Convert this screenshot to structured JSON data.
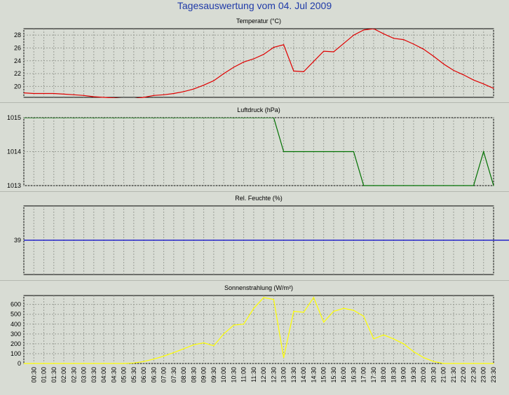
{
  "title": "Tagesauswertung vom 04. Jul 2009",
  "chart_data": [
    {
      "type": "line",
      "title": "Temperatur (°C)",
      "color": "#e00000",
      "ylim": [
        18.3,
        29
      ],
      "yticks": [
        20,
        22,
        24,
        26,
        28
      ],
      "x": [
        "00:00",
        "00:30",
        "01:00",
        "01:30",
        "02:00",
        "02:30",
        "03:00",
        "03:30",
        "04:00",
        "04:30",
        "05:00",
        "05:30",
        "06:00",
        "06:30",
        "07:00",
        "07:30",
        "08:00",
        "08:30",
        "09:00",
        "09:30",
        "10:00",
        "10:30",
        "11:00",
        "11:30",
        "12:00",
        "12:30",
        "13:00",
        "13:30",
        "14:00",
        "14:30",
        "15:00",
        "15:30",
        "16:00",
        "16:30",
        "17:00",
        "17:30",
        "18:00",
        "18:30",
        "19:00",
        "19:30",
        "20:00",
        "20:30",
        "21:00",
        "21:30",
        "22:00",
        "22:30",
        "23:00",
        "23:30"
      ],
      "values": [
        19.0,
        18.9,
        18.9,
        18.9,
        18.8,
        18.7,
        18.6,
        18.4,
        18.3,
        18.2,
        18.1,
        18.1,
        18.3,
        18.6,
        18.7,
        18.9,
        19.2,
        19.6,
        20.2,
        20.9,
        22.0,
        23.0,
        23.8,
        24.3,
        25.0,
        26.1,
        26.5,
        22.4,
        22.3,
        23.9,
        25.5,
        25.4,
        26.7,
        28.0,
        28.8,
        29.0,
        28.2,
        27.5,
        27.3,
        26.6,
        25.8,
        24.7,
        23.5,
        22.5,
        21.8,
        21.0,
        20.4,
        19.7
      ],
      "grid": true
    },
    {
      "type": "line",
      "title": "Luftdruck (hPa)",
      "color": "#007000",
      "ylim": [
        1013,
        1015
      ],
      "yticks": [
        1013,
        1014,
        1015
      ],
      "x": [
        "00:00",
        "00:30",
        "01:00",
        "01:30",
        "02:00",
        "02:30",
        "03:00",
        "03:30",
        "04:00",
        "04:30",
        "05:00",
        "05:30",
        "06:00",
        "06:30",
        "07:00",
        "07:30",
        "08:00",
        "08:30",
        "09:00",
        "09:30",
        "10:00",
        "10:30",
        "11:00",
        "11:30",
        "12:00",
        "12:30",
        "13:00",
        "13:30",
        "14:00",
        "14:30",
        "15:00",
        "15:30",
        "16:00",
        "16:30",
        "17:00",
        "17:30",
        "18:00",
        "18:30",
        "19:00",
        "19:30",
        "20:00",
        "20:30",
        "21:00",
        "21:30",
        "22:00",
        "22:30",
        "23:00",
        "23:30"
      ],
      "values": [
        1015,
        1015,
        1015,
        1015,
        1015,
        1015,
        1015,
        1015,
        1015,
        1015,
        1015,
        1015,
        1015,
        1015,
        1015,
        1015,
        1015,
        1015,
        1015,
        1015,
        1015,
        1015,
        1015,
        1015,
        1015,
        1015,
        1014,
        1014,
        1014,
        1014,
        1014,
        1014,
        1014,
        1014,
        1013,
        1013,
        1013,
        1013,
        1013,
        1013,
        1013,
        1013,
        1013,
        1013,
        1013,
        1013,
        1014,
        1013
      ],
      "grid": true
    },
    {
      "type": "line",
      "title": "Rel. Feuchte (%)",
      "color": "#0000c8",
      "ylim": [
        38,
        40
      ],
      "yticks": [
        39
      ],
      "x": [
        "00:00",
        "23:30"
      ],
      "values": [
        39,
        39
      ],
      "grid": true
    },
    {
      "type": "line",
      "title": "Sonnenstrahlung (W/m²)",
      "color": "#ffff00",
      "ylim": [
        0,
        690
      ],
      "yticks": [
        0,
        100,
        200,
        300,
        400,
        500,
        600
      ],
      "x": [
        "00:00",
        "00:30",
        "01:00",
        "01:30",
        "02:00",
        "02:30",
        "03:00",
        "03:30",
        "04:00",
        "04:30",
        "05:00",
        "05:30",
        "06:00",
        "06:30",
        "07:00",
        "07:30",
        "08:00",
        "08:30",
        "09:00",
        "09:30",
        "10:00",
        "10:30",
        "11:00",
        "11:30",
        "12:00",
        "12:30",
        "13:00",
        "13:30",
        "14:00",
        "14:30",
        "15:00",
        "15:30",
        "16:00",
        "16:30",
        "17:00",
        "17:30",
        "18:00",
        "18:30",
        "19:00",
        "19:30",
        "20:00",
        "20:30",
        "21:00",
        "21:30",
        "22:00",
        "22:30",
        "23:00",
        "23:30"
      ],
      "values": [
        0,
        0,
        0,
        0,
        0,
        0,
        0,
        0,
        0,
        0,
        0,
        5,
        20,
        45,
        75,
        110,
        150,
        190,
        210,
        180,
        300,
        390,
        400,
        560,
        670,
        650,
        60,
        530,
        520,
        670,
        420,
        530,
        560,
        540,
        480,
        250,
        290,
        250,
        200,
        120,
        60,
        20,
        0,
        0,
        0,
        0,
        0,
        0
      ],
      "grid": true
    }
  ],
  "x_tick_labels": [
    "00:30",
    "01:00",
    "01:30",
    "02:00",
    "02:30",
    "03:00",
    "03:30",
    "04:00",
    "04:30",
    "05:00",
    "05:30",
    "06:00",
    "06:30",
    "07:00",
    "07:30",
    "08:00",
    "08:30",
    "09:00",
    "09:30",
    "10:00",
    "10:30",
    "11:00",
    "11:30",
    "12:00",
    "12:30",
    "13:00",
    "13:30",
    "14:00",
    "14:30",
    "15:00",
    "15:30",
    "16:00",
    "16:30",
    "17:00",
    "17:30",
    "18:00",
    "18:30",
    "19:00",
    "19:30",
    "20:00",
    "20:30",
    "21:00",
    "21:30",
    "22:00",
    "22:30",
    "23:00",
    "23:30"
  ]
}
